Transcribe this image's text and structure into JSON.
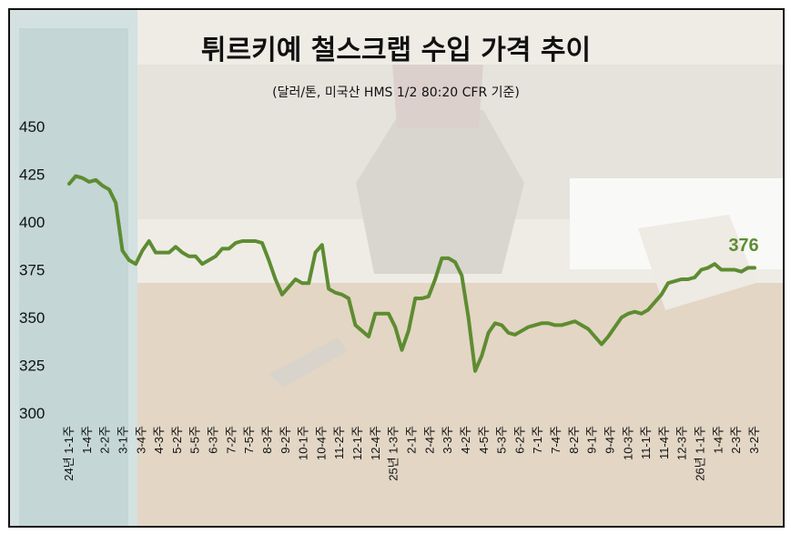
{
  "chart_data": {
    "type": "line",
    "title": "튀르키예 철스크랩 수입 가격 추이",
    "subtitle": "(달러/톤, 미국산 HMS 1/2 80:20 CFR 기준)",
    "ylim": [
      300,
      450
    ],
    "yticks": [
      300,
      325,
      350,
      375,
      400,
      425,
      450
    ],
    "grid": false,
    "line_color": "#5e8c31",
    "end_label": "376",
    "x_labels": [
      "24년 1-1주",
      "1-4주",
      "2-2주",
      "3-1주",
      "3-4주",
      "4-3주",
      "5-2주",
      "5-5주",
      "6-3주",
      "7-2주",
      "7-5주",
      "8-3주",
      "9-2주",
      "10-1주",
      "10-4주",
      "11-2주",
      "12-1주",
      "12-4주",
      "25년 1-3주",
      "2-1주",
      "2-4주",
      "3-3주",
      "4-2주",
      "4-5주",
      "5-3주",
      "6-2주",
      "7-1주",
      "7-4주",
      "8-2주",
      "9-1주",
      "9-4주",
      "10-3주",
      "11-1주",
      "11-4주",
      "12-3주",
      "26년 1-1주",
      "1-4주",
      "2-3주",
      "3-2주"
    ],
    "series": [
      {
        "values": [
          420,
          424,
          423,
          421,
          422,
          419,
          417,
          410,
          385,
          380,
          378,
          385,
          390,
          384,
          384,
          384,
          387,
          384,
          382,
          382,
          378,
          380,
          382,
          386,
          386,
          389,
          390,
          390,
          390,
          389,
          380,
          370,
          362,
          366,
          370,
          368,
          368,
          384,
          388,
          365,
          363,
          362,
          360,
          346,
          343,
          340,
          352,
          352,
          352,
          345,
          333,
          343,
          360,
          360,
          361,
          370,
          381,
          381,
          379,
          372,
          350,
          322,
          330,
          342,
          347,
          346,
          342,
          341,
          343,
          345,
          346,
          347,
          347,
          346,
          346,
          347,
          348,
          346,
          344,
          340,
          336,
          340,
          345,
          350,
          352,
          353,
          352,
          354,
          358,
          362,
          368,
          369,
          370,
          370,
          371,
          375,
          376,
          378,
          375,
          375,
          375,
          374,
          376,
          376
        ]
      }
    ]
  }
}
